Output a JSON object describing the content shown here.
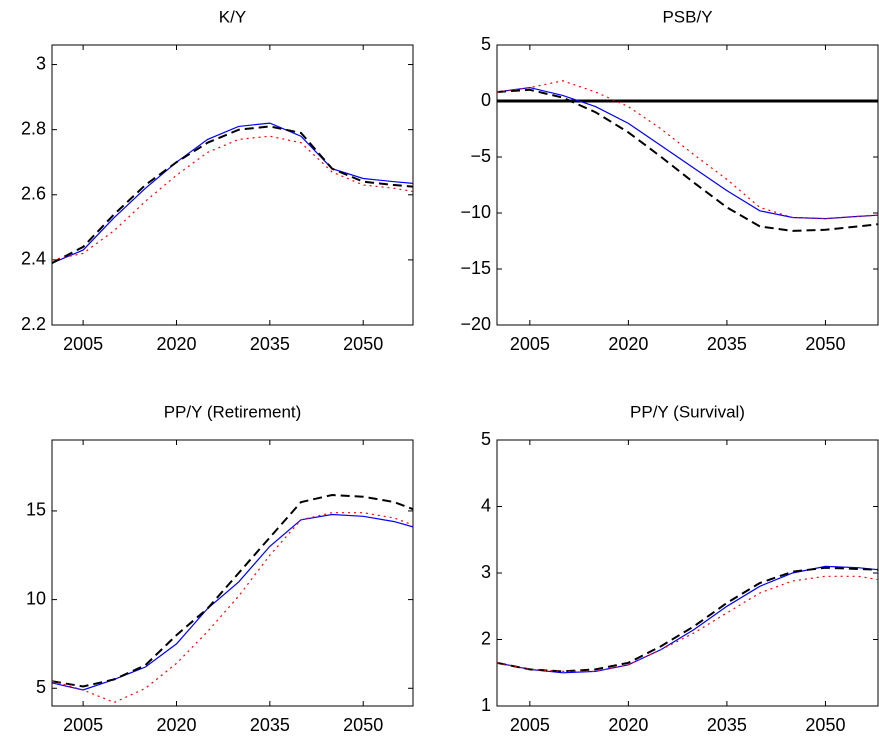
{
  "chart_data": [
    {
      "type": "line",
      "title": "K/Y",
      "x": [
        2000,
        2005,
        2010,
        2015,
        2020,
        2025,
        2030,
        2035,
        2040,
        2045,
        2050,
        2055,
        2058
      ],
      "xlim": [
        2000,
        2058
      ],
      "xticks": [
        2005,
        2020,
        2035,
        2050
      ],
      "ylim": [
        2.2,
        3.06
      ],
      "yticks": [
        2.2,
        2.4,
        2.6,
        2.8,
        3
      ],
      "series": [
        {
          "color": "#0000ff",
          "linestyle": "solid",
          "values": [
            2.39,
            2.43,
            2.53,
            2.62,
            2.7,
            2.77,
            2.81,
            2.82,
            2.78,
            2.68,
            2.65,
            2.64,
            2.635
          ]
        },
        {
          "color": "#000000",
          "linestyle": "dashed",
          "values": [
            2.39,
            2.44,
            2.54,
            2.63,
            2.7,
            2.76,
            2.8,
            2.81,
            2.79,
            2.68,
            2.64,
            2.63,
            2.625
          ]
        },
        {
          "color": "#ff0000",
          "linestyle": "dotted",
          "values": [
            2.4,
            2.42,
            2.49,
            2.58,
            2.66,
            2.73,
            2.77,
            2.78,
            2.76,
            2.67,
            2.63,
            2.62,
            2.61
          ]
        }
      ]
    },
    {
      "type": "line",
      "title": "PSB/Y",
      "x": [
        2000,
        2005,
        2010,
        2015,
        2020,
        2025,
        2030,
        2035,
        2040,
        2045,
        2050,
        2055,
        2058
      ],
      "xlim": [
        2000,
        2058
      ],
      "xticks": [
        2005,
        2020,
        2035,
        2050
      ],
      "ylim": [
        -20,
        5
      ],
      "yticks": [
        {
          "value": -20,
          "label": "−20"
        },
        {
          "value": -15,
          "label": "−15"
        },
        {
          "value": -10,
          "label": "−10"
        },
        {
          "value": -5,
          "label": "−5"
        },
        0,
        5
      ],
      "hlines": [
        0
      ],
      "series": [
        {
          "color": "#0000ff",
          "linestyle": "solid",
          "values": [
            0.8,
            1.2,
            0.5,
            -0.5,
            -2,
            -4,
            -6,
            -8,
            -9.8,
            -10.4,
            -10.5,
            -10.3,
            -10.2
          ]
        },
        {
          "color": "#000000",
          "linestyle": "dashed",
          "values": [
            0.8,
            1.0,
            0.3,
            -1,
            -2.8,
            -5,
            -7.3,
            -9.5,
            -11.2,
            -11.6,
            -11.5,
            -11.2,
            -11
          ]
        },
        {
          "color": "#ff0000",
          "linestyle": "dotted",
          "values": [
            0.8,
            1.2,
            1.8,
            0.8,
            -0.5,
            -2.5,
            -4.8,
            -7,
            -9.5,
            -10.4,
            -10.5,
            -10.3,
            -10.2
          ]
        }
      ]
    },
    {
      "type": "line",
      "title": "PP/Y (Retirement)",
      "x": [
        2000,
        2005,
        2010,
        2015,
        2020,
        2025,
        2030,
        2035,
        2040,
        2045,
        2050,
        2055,
        2058
      ],
      "xlim": [
        2000,
        2058
      ],
      "xticks": [
        2005,
        2020,
        2035,
        2050
      ],
      "ylim": [
        4,
        19
      ],
      "yticks": [
        5,
        10,
        15
      ],
      "series": [
        {
          "color": "#0000ff",
          "linestyle": "solid",
          "values": [
            5.3,
            4.9,
            5.5,
            6.2,
            7.5,
            9.5,
            11,
            13,
            14.5,
            14.8,
            14.7,
            14.4,
            14.1
          ]
        },
        {
          "color": "#000000",
          "linestyle": "dashed",
          "values": [
            5.4,
            5.1,
            5.5,
            6.3,
            8,
            9.5,
            11.5,
            13.5,
            15.5,
            15.9,
            15.8,
            15.5,
            15.1
          ]
        },
        {
          "color": "#ff0000",
          "linestyle": "dotted",
          "values": [
            5.4,
            4.9,
            4.2,
            5,
            6.4,
            8.2,
            10.2,
            12.5,
            14.5,
            14.9,
            14.9,
            14.6,
            14.2
          ]
        }
      ]
    },
    {
      "type": "line",
      "title": "PP/Y  (Survival)",
      "x": [
        2000,
        2005,
        2010,
        2015,
        2020,
        2025,
        2030,
        2035,
        2040,
        2045,
        2050,
        2055,
        2058
      ],
      "xlim": [
        2000,
        2058
      ],
      "xticks": [
        2005,
        2020,
        2035,
        2050
      ],
      "ylim": [
        1,
        5
      ],
      "yticks": [
        1,
        2,
        3,
        4,
        5
      ],
      "series": [
        {
          "color": "#0000ff",
          "linestyle": "solid",
          "values": [
            1.65,
            1.55,
            1.5,
            1.52,
            1.62,
            1.85,
            2.15,
            2.5,
            2.8,
            3.0,
            3.1,
            3.08,
            3.05
          ]
        },
        {
          "color": "#000000",
          "linestyle": "dashed",
          "values": [
            1.65,
            1.55,
            1.52,
            1.55,
            1.65,
            1.9,
            2.2,
            2.55,
            2.85,
            3.02,
            3.08,
            3.06,
            3.05
          ]
        },
        {
          "color": "#ff0000",
          "linestyle": "dotted",
          "values": [
            1.65,
            1.55,
            1.52,
            1.52,
            1.62,
            1.85,
            2.1,
            2.4,
            2.7,
            2.88,
            2.95,
            2.95,
            2.9
          ]
        }
      ]
    }
  ]
}
